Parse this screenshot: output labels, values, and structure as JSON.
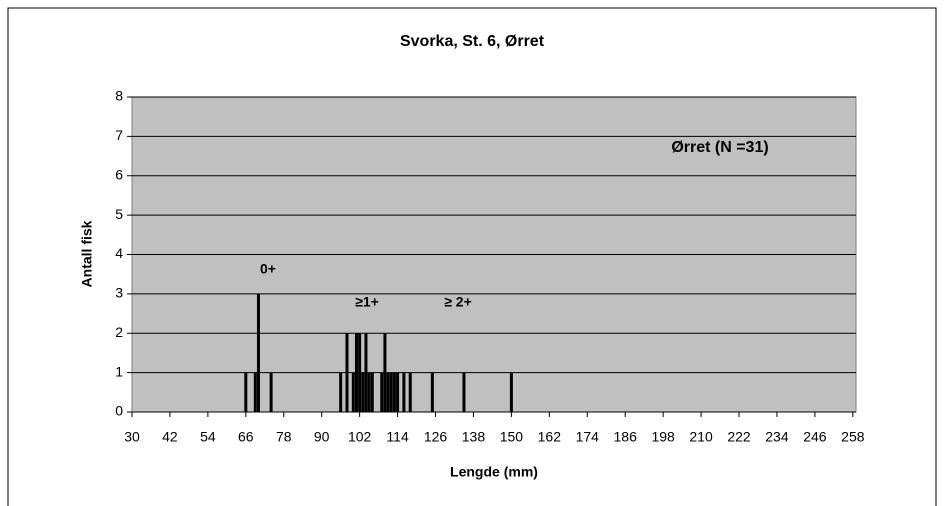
{
  "chart_data": {
    "type": "bar",
    "title": "Svorka, St. 6, Ørret",
    "x_label": "Lengde (mm)",
    "y_label": "Antall fisk",
    "annotations": [
      "0+",
      "≥1+",
      "≥ 2+",
      "Ørret (N =31)"
    ],
    "x": [
      66,
      69,
      70,
      74,
      96,
      98,
      100,
      101,
      102,
      103,
      104,
      105,
      106,
      109,
      110,
      111,
      112,
      113,
      114,
      116,
      118,
      125,
      135,
      150
    ],
    "values": [
      1,
      1,
      3,
      1,
      1,
      2,
      1,
      2,
      2,
      1,
      2,
      1,
      1,
      1,
      2,
      1,
      1,
      1,
      1,
      1,
      1,
      1,
      1,
      1
    ],
    "color": "#000000",
    "xlim": [
      30,
      259
    ],
    "xticks": [
      30,
      42,
      54,
      66,
      78,
      90,
      102,
      114,
      126,
      138,
      150,
      162,
      174,
      186,
      198,
      210,
      222,
      234,
      246,
      258
    ],
    "ylim": [
      0,
      8
    ],
    "yticks": [
      0,
      1,
      2,
      3,
      4,
      5,
      6,
      7,
      8
    ],
    "grid": true
  }
}
